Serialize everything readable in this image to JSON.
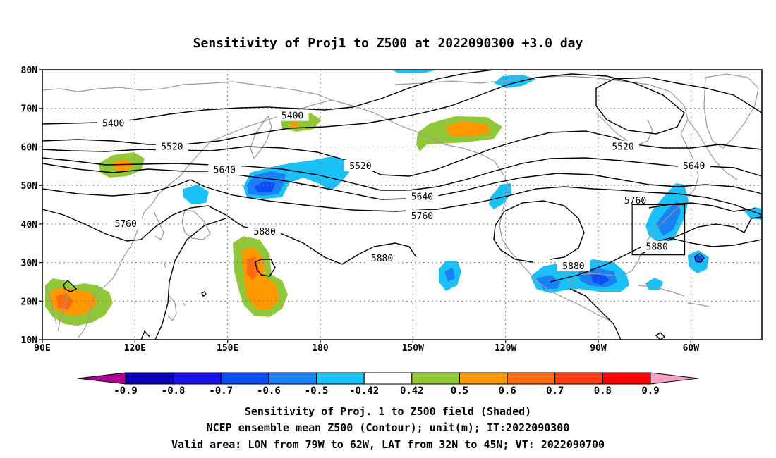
{
  "title": "Sensitivity of Proj1 to Z500 at 2022090300 +3.0 day",
  "lat_labels": [
    "80N",
    "70N",
    "60N",
    "50N",
    "40N",
    "30N",
    "20N",
    "10N"
  ],
  "lat_values": [
    80,
    70,
    60,
    50,
    40,
    30,
    20,
    10
  ],
  "lon_labels": [
    "90E",
    "120E",
    "150E",
    "180",
    "150W",
    "120W",
    "90W",
    "60W"
  ],
  "lon_values": [
    90,
    120,
    150,
    180,
    210,
    240,
    270,
    300
  ],
  "map_extent": {
    "lon_min": 90,
    "lon_max": 323,
    "lat_min": 10,
    "lat_max": 80
  },
  "contour_labels": [
    {
      "text": "5400",
      "lon": 113,
      "lat": 66
    },
    {
      "text": "5400",
      "lon": 171,
      "lat": 68
    },
    {
      "text": "5520",
      "lon": 132,
      "lat": 60
    },
    {
      "text": "5520",
      "lon": 193,
      "lat": 55
    },
    {
      "text": "5520",
      "lon": 278,
      "lat": 60
    },
    {
      "text": "5640",
      "lon": 149,
      "lat": 54
    },
    {
      "text": "5640",
      "lon": 213,
      "lat": 47
    },
    {
      "text": "5640",
      "lon": 301,
      "lat": 55
    },
    {
      "text": "5760",
      "lon": 117,
      "lat": 40
    },
    {
      "text": "5760",
      "lon": 213,
      "lat": 42
    },
    {
      "text": "5760",
      "lon": 282,
      "lat": 46
    },
    {
      "text": "5880",
      "lon": 162,
      "lat": 38
    },
    {
      "text": "5880",
      "lon": 200,
      "lat": 31
    },
    {
      "text": "5880",
      "lon": 262,
      "lat": 29
    },
    {
      "text": "5880",
      "lon": 289,
      "lat": 34
    }
  ],
  "valid_box": {
    "lon_min": 281,
    "lon_max": 298,
    "lat_min": 32,
    "lat_max": 45
  },
  "colorbar": {
    "colors": [
      "#b00090",
      "#0a00b8",
      "#1a10e8",
      "#0a4ef8",
      "#1a80f8",
      "#1ac0f8",
      "#ffffff",
      "#90c83a",
      "#ff9800",
      "#ff6a10",
      "#ff3c10",
      "#ff0000",
      "#f8a0c8"
    ],
    "labels": [
      "-0.9",
      "-0.8",
      "-0.7",
      "-0.6",
      "-0.5",
      "-0.42",
      "0.42",
      "0.5",
      "0.6",
      "0.7",
      "0.8",
      "0.9"
    ]
  },
  "caption": {
    "line1": "Sensitivity of Proj. 1 to Z500 field (Shaded)",
    "line2": "NCEP ensemble mean Z500 (Contour); unit(m); IT:2022090300",
    "line3": "Valid area: LON from 79W to 62W, LAT from 32N to 45N; VT: 2022090700"
  }
}
